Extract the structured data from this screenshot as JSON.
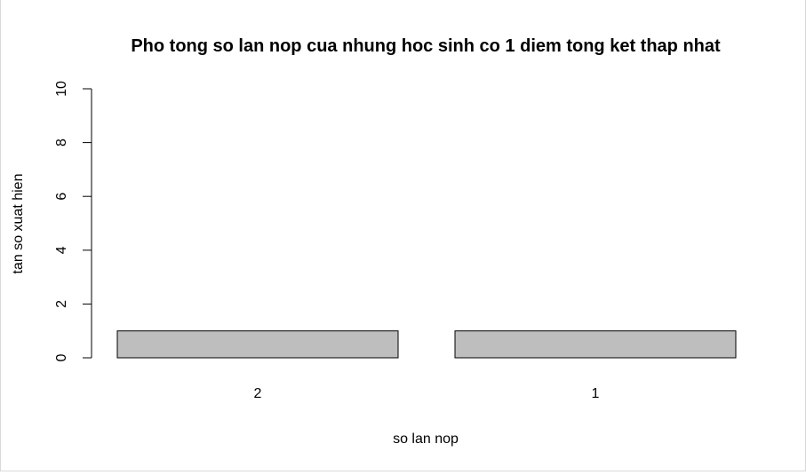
{
  "chart_data": {
    "type": "bar",
    "title": "Pho tong so lan nop cua nhung hoc sinh co 1 diem tong ket thap nhat",
    "xlabel": "so lan nop",
    "ylabel": "tan so xuat hien",
    "categories": [
      "2",
      "1"
    ],
    "values": [
      1,
      1
    ],
    "ylim": [
      0,
      10
    ],
    "yticks": [
      "0",
      "2",
      "4",
      "6",
      "8",
      "10"
    ],
    "bar_color": "#bebebe",
    "bar_border": "#000000",
    "grid": false
  }
}
